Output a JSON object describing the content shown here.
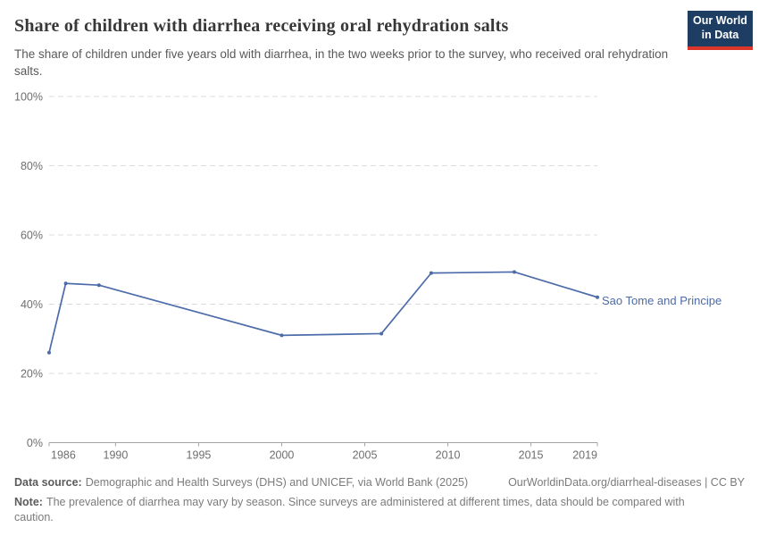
{
  "header": {
    "title": "Share of children with diarrhea receiving oral rehydration salts",
    "subtitle": "The share of children under five years old with diarrhea, in the two weeks prior to the survey, who received oral rehydration salts.",
    "logo": {
      "line1": "Our World",
      "line2": "in Data",
      "bg_color": "#1d3d63",
      "accent_color": "#dc362b"
    }
  },
  "chart_data": {
    "type": "line",
    "title": "Share of children with diarrhea receiving oral rehydration salts",
    "xlabel": "",
    "ylabel": "",
    "xlim": [
      1986,
      2019
    ],
    "ylim": [
      0,
      100
    ],
    "xticks": [
      1986,
      1990,
      1995,
      2000,
      2005,
      2010,
      2015,
      2019
    ],
    "yticks": [
      0,
      20,
      40,
      60,
      80,
      100
    ],
    "ytick_suffix": "%",
    "grid": "horizontal-dashed",
    "gridline_color": "#dcdcdc",
    "axis_color": "#a3a3a3",
    "tick_label_color": "#6e6e6e",
    "series": [
      {
        "name": "Sao Tome and Principe",
        "color": "#4c6ba9",
        "points": [
          [
            1986,
            26
          ],
          [
            1987,
            46
          ],
          [
            1989,
            45.5
          ],
          [
            2000,
            31
          ],
          [
            2006,
            31.5
          ],
          [
            2009,
            49
          ],
          [
            2014,
            49.3
          ],
          [
            2019,
            42
          ]
        ]
      }
    ]
  },
  "footer": {
    "source_label": "Data source:",
    "source_text": "Demographic and Health Surveys (DHS) and UNICEF, via World Bank (2025)",
    "attribution": "OurWorldinData.org/diarrheal-diseases | CC BY",
    "note_label": "Note:",
    "note_text": "The prevalence of diarrhea may vary by season. Since surveys are administered at different times, data should be compared with caution."
  }
}
